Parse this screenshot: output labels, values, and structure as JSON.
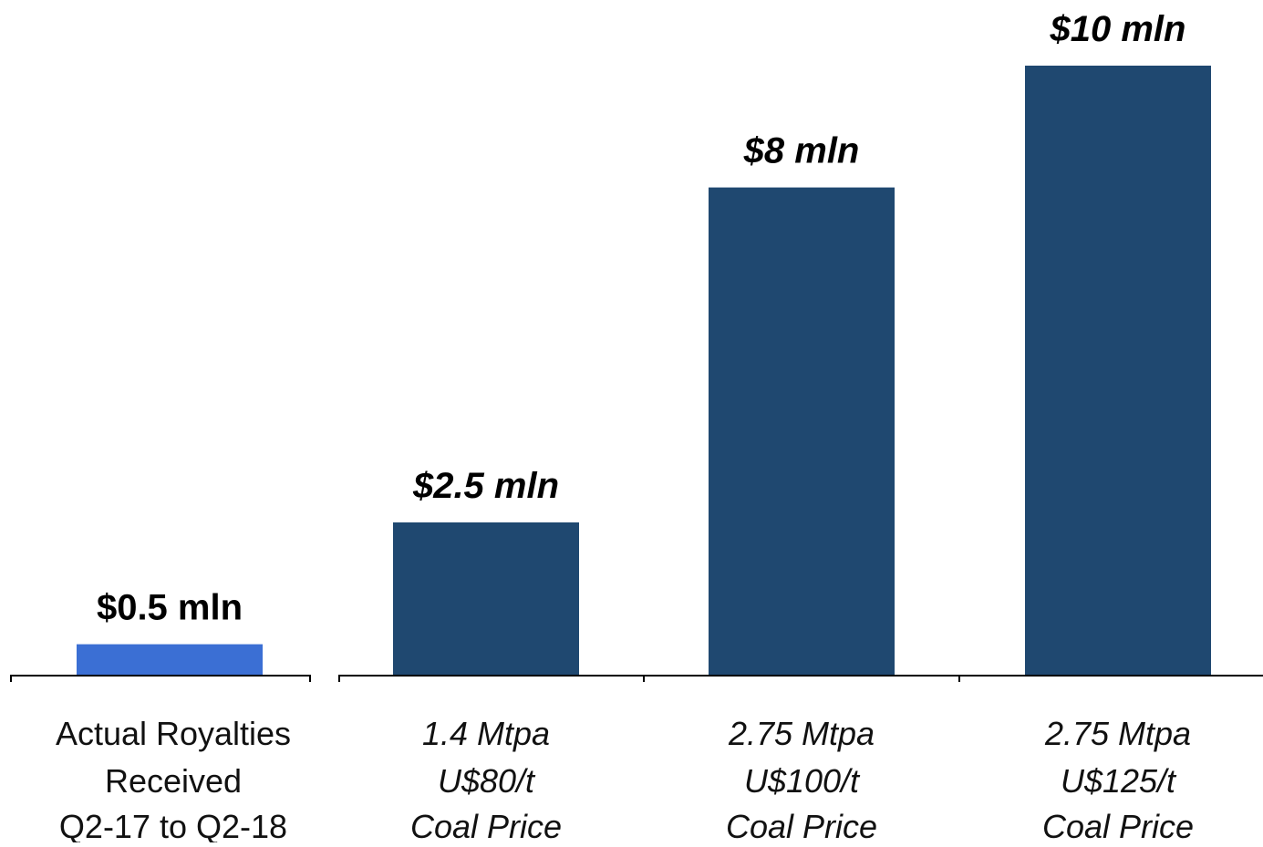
{
  "chart_data": {
    "type": "bar",
    "categories": [
      {
        "lines": [
          "Actual Royalties",
          "Received",
          "Q2-17 to Q2-18"
        ],
        "italic": false
      },
      {
        "lines": [
          "1.4 Mtpa",
          "U$80/t",
          "Coal Price"
        ],
        "italic": true
      },
      {
        "lines": [
          "2.75 Mtpa",
          "U$100/t",
          "Coal Price"
        ],
        "italic": true
      },
      {
        "lines": [
          "2.75 Mtpa",
          "U$125/t",
          "Coal Price"
        ],
        "italic": true
      }
    ],
    "values": [
      0.5,
      2.5,
      8,
      10
    ],
    "data_labels": [
      "$0.5 mln",
      "$2.5 mln",
      "$8 mln",
      "$10 mln"
    ],
    "label_italic": [
      false,
      true,
      true,
      true
    ],
    "bar_colors": [
      "#3b6fd4",
      "#1f4870",
      "#1f4870",
      "#1f4870"
    ],
    "axis_color": "#000000",
    "title": "",
    "xlabel": "",
    "ylabel": "",
    "ylim": [
      0,
      10
    ],
    "grid": false,
    "legend": "none",
    "units": "$ mln"
  }
}
